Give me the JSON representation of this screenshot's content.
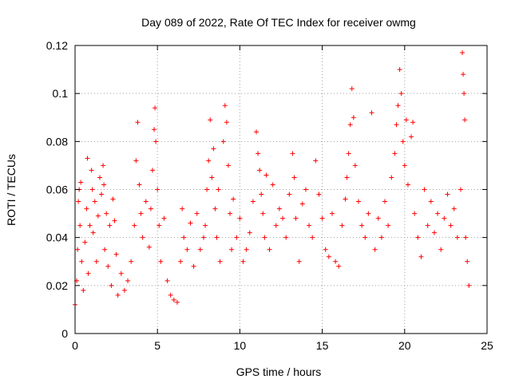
{
  "chart_data": {
    "type": "scatter",
    "title": "Day 089 of 2022, Rate Of TEC Index for receiver owmg",
    "xlabel": "GPS time / hours",
    "ylabel": "ROTI / TECUs",
    "xlim": [
      0,
      25
    ],
    "ylim": [
      0,
      0.12
    ],
    "x_ticks": [
      "0",
      "5",
      "10",
      "15",
      "20",
      "25"
    ],
    "y_ticks": [
      "0",
      "0.02",
      "0.04",
      "0.06",
      "0.08",
      "0.1",
      "0.12"
    ],
    "grid": true,
    "marker": "+",
    "color": "#ff0000",
    "points": [
      [
        0.0,
        0.012
      ],
      [
        0.1,
        0.022
      ],
      [
        0.15,
        0.035
      ],
      [
        0.2,
        0.055
      ],
      [
        0.25,
        0.06
      ],
      [
        0.3,
        0.045
      ],
      [
        0.35,
        0.063
      ],
      [
        0.4,
        0.03
      ],
      [
        0.5,
        0.018
      ],
      [
        0.6,
        0.038
      ],
      [
        0.7,
        0.052
      ],
      [
        0.75,
        0.073
      ],
      [
        0.8,
        0.025
      ],
      [
        0.9,
        0.045
      ],
      [
        1.0,
        0.068
      ],
      [
        1.05,
        0.06
      ],
      [
        1.1,
        0.042
      ],
      [
        1.2,
        0.055
      ],
      [
        1.3,
        0.03
      ],
      [
        1.4,
        0.049
      ],
      [
        1.5,
        0.065
      ],
      [
        1.6,
        0.058
      ],
      [
        1.7,
        0.07
      ],
      [
        1.75,
        0.062
      ],
      [
        1.8,
        0.035
      ],
      [
        1.9,
        0.05
      ],
      [
        2.0,
        0.028
      ],
      [
        2.1,
        0.045
      ],
      [
        2.2,
        0.02
      ],
      [
        2.3,
        0.056
      ],
      [
        2.4,
        0.047
      ],
      [
        2.5,
        0.033
      ],
      [
        2.6,
        0.016
      ],
      [
        2.8,
        0.025
      ],
      [
        3.0,
        0.018
      ],
      [
        3.2,
        0.022
      ],
      [
        3.4,
        0.03
      ],
      [
        3.6,
        0.045
      ],
      [
        3.7,
        0.072
      ],
      [
        3.8,
        0.088
      ],
      [
        3.9,
        0.062
      ],
      [
        4.0,
        0.05
      ],
      [
        4.1,
        0.04
      ],
      [
        4.3,
        0.055
      ],
      [
        4.5,
        0.036
      ],
      [
        4.6,
        0.052
      ],
      [
        4.7,
        0.068
      ],
      [
        4.8,
        0.085
      ],
      [
        4.85,
        0.094
      ],
      [
        4.9,
        0.08
      ],
      [
        5.0,
        0.06
      ],
      [
        5.1,
        0.045
      ],
      [
        5.2,
        0.03
      ],
      [
        5.4,
        0.048
      ],
      [
        5.6,
        0.022
      ],
      [
        5.8,
        0.016
      ],
      [
        6.0,
        0.014
      ],
      [
        6.2,
        0.013
      ],
      [
        6.4,
        0.03
      ],
      [
        6.5,
        0.052
      ],
      [
        6.6,
        0.04
      ],
      [
        6.8,
        0.035
      ],
      [
        7.0,
        0.046
      ],
      [
        7.2,
        0.028
      ],
      [
        7.4,
        0.05
      ],
      [
        7.6,
        0.035
      ],
      [
        7.8,
        0.04
      ],
      [
        7.9,
        0.045
      ],
      [
        8.0,
        0.06
      ],
      [
        8.1,
        0.072
      ],
      [
        8.2,
        0.089
      ],
      [
        8.3,
        0.065
      ],
      [
        8.4,
        0.077
      ],
      [
        8.5,
        0.052
      ],
      [
        8.6,
        0.04
      ],
      [
        8.7,
        0.06
      ],
      [
        8.8,
        0.03
      ],
      [
        9.0,
        0.08
      ],
      [
        9.1,
        0.095
      ],
      [
        9.2,
        0.088
      ],
      [
        9.3,
        0.07
      ],
      [
        9.4,
        0.05
      ],
      [
        9.5,
        0.035
      ],
      [
        9.6,
        0.056
      ],
      [
        9.8,
        0.04
      ],
      [
        10.0,
        0.048
      ],
      [
        10.2,
        0.03
      ],
      [
        10.4,
        0.035
      ],
      [
        10.6,
        0.042
      ],
      [
        10.8,
        0.055
      ],
      [
        11.0,
        0.084
      ],
      [
        11.1,
        0.075
      ],
      [
        11.2,
        0.068
      ],
      [
        11.3,
        0.058
      ],
      [
        11.4,
        0.05
      ],
      [
        11.5,
        0.04
      ],
      [
        11.6,
        0.066
      ],
      [
        11.8,
        0.035
      ],
      [
        12.0,
        0.062
      ],
      [
        12.2,
        0.045
      ],
      [
        12.4,
        0.052
      ],
      [
        12.6,
        0.048
      ],
      [
        12.8,
        0.04
      ],
      [
        13.0,
        0.058
      ],
      [
        13.2,
        0.075
      ],
      [
        13.3,
        0.065
      ],
      [
        13.4,
        0.048
      ],
      [
        13.6,
        0.03
      ],
      [
        13.8,
        0.054
      ],
      [
        14.0,
        0.06
      ],
      [
        14.2,
        0.045
      ],
      [
        14.4,
        0.04
      ],
      [
        14.6,
        0.072
      ],
      [
        14.8,
        0.058
      ],
      [
        15.0,
        0.048
      ],
      [
        15.2,
        0.035
      ],
      [
        15.4,
        0.032
      ],
      [
        15.6,
        0.05
      ],
      [
        15.8,
        0.03
      ],
      [
        16.0,
        0.028
      ],
      [
        16.2,
        0.045
      ],
      [
        16.4,
        0.056
      ],
      [
        16.5,
        0.065
      ],
      [
        16.6,
        0.075
      ],
      [
        16.7,
        0.087
      ],
      [
        16.8,
        0.102
      ],
      [
        16.9,
        0.09
      ],
      [
        17.0,
        0.07
      ],
      [
        17.2,
        0.055
      ],
      [
        17.4,
        0.045
      ],
      [
        17.6,
        0.04
      ],
      [
        17.8,
        0.05
      ],
      [
        18.0,
        0.092
      ],
      [
        18.2,
        0.035
      ],
      [
        18.4,
        0.048
      ],
      [
        18.6,
        0.04
      ],
      [
        18.8,
        0.055
      ],
      [
        19.0,
        0.045
      ],
      [
        19.2,
        0.065
      ],
      [
        19.4,
        0.075
      ],
      [
        19.5,
        0.087
      ],
      [
        19.6,
        0.095
      ],
      [
        19.7,
        0.11
      ],
      [
        19.8,
        0.1
      ],
      [
        19.9,
        0.08
      ],
      [
        20.0,
        0.07
      ],
      [
        20.1,
        0.089
      ],
      [
        20.2,
        0.062
      ],
      [
        20.4,
        0.082
      ],
      [
        20.5,
        0.088
      ],
      [
        20.6,
        0.05
      ],
      [
        20.8,
        0.04
      ],
      [
        21.0,
        0.032
      ],
      [
        21.2,
        0.06
      ],
      [
        21.4,
        0.045
      ],
      [
        21.6,
        0.055
      ],
      [
        21.8,
        0.042
      ],
      [
        22.0,
        0.05
      ],
      [
        22.2,
        0.035
      ],
      [
        22.4,
        0.048
      ],
      [
        22.6,
        0.058
      ],
      [
        22.8,
        0.045
      ],
      [
        23.0,
        0.052
      ],
      [
        23.2,
        0.04
      ],
      [
        23.4,
        0.06
      ],
      [
        23.5,
        0.117
      ],
      [
        23.55,
        0.108
      ],
      [
        23.6,
        0.1
      ],
      [
        23.65,
        0.089
      ],
      [
        23.7,
        0.04
      ],
      [
        23.8,
        0.03
      ],
      [
        23.9,
        0.02
      ]
    ]
  }
}
